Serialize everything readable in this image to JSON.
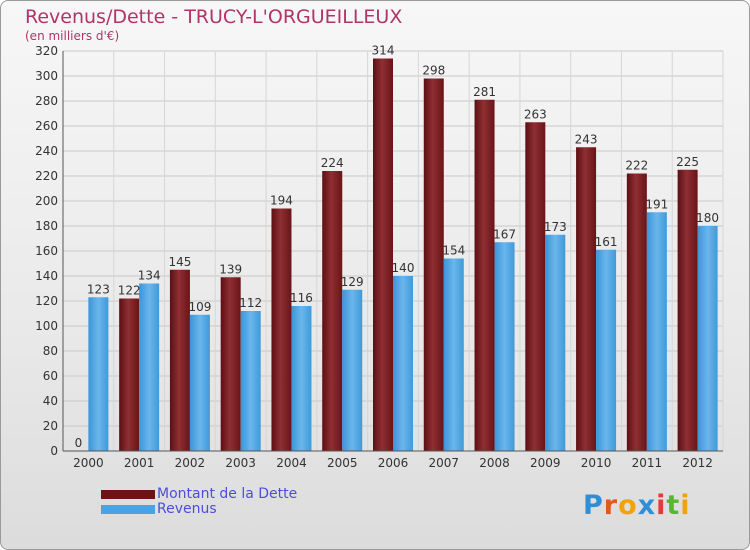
{
  "header": {
    "title": "Revenus/Dette - TRUCY-L'ORGUEILLEUX",
    "subtitle": "(en milliers d'€)"
  },
  "legend": {
    "dette": "Montant de la Dette",
    "revenus": "Revenus"
  },
  "logo": {
    "text": "Proxiti",
    "letters": [
      "P",
      "r",
      "o",
      "x",
      "i",
      "t",
      "i"
    ],
    "colors": [
      "#2f8fd6",
      "#e05a1c",
      "#f2a20c",
      "#2f8fd6",
      "#e53a3a",
      "#5cb531",
      "#f2a20c"
    ]
  },
  "colors": {
    "dette": "#7a1a1f",
    "dette_light": "#9b3a3e",
    "revenus": "#4aa3e4",
    "revenus_light": "#7cc2f0",
    "axis_text": "#333333"
  },
  "chart_data": {
    "type": "bar",
    "title": "Revenus/Dette - TRUCY-L'ORGUEILLEUX",
    "ylabel": "(en milliers d'€)",
    "xlabel": "",
    "categories": [
      "2000",
      "2001",
      "2002",
      "2003",
      "2004",
      "2005",
      "2006",
      "2007",
      "2008",
      "2009",
      "2010",
      "2011",
      "2012"
    ],
    "series": [
      {
        "name": "Montant de la Dette",
        "values": [
          0,
          122,
          145,
          139,
          194,
          224,
          314,
          298,
          281,
          263,
          243,
          222,
          225
        ]
      },
      {
        "name": "Revenus",
        "values": [
          123,
          134,
          109,
          112,
          116,
          129,
          140,
          154,
          167,
          173,
          161,
          191,
          180
        ]
      }
    ],
    "ylim": [
      0,
      320
    ],
    "yticks": [
      0,
      20,
      40,
      60,
      80,
      100,
      120,
      140,
      160,
      180,
      200,
      220,
      240,
      260,
      280,
      300,
      320
    ],
    "grid": true,
    "legend_position": "bottom-left"
  }
}
